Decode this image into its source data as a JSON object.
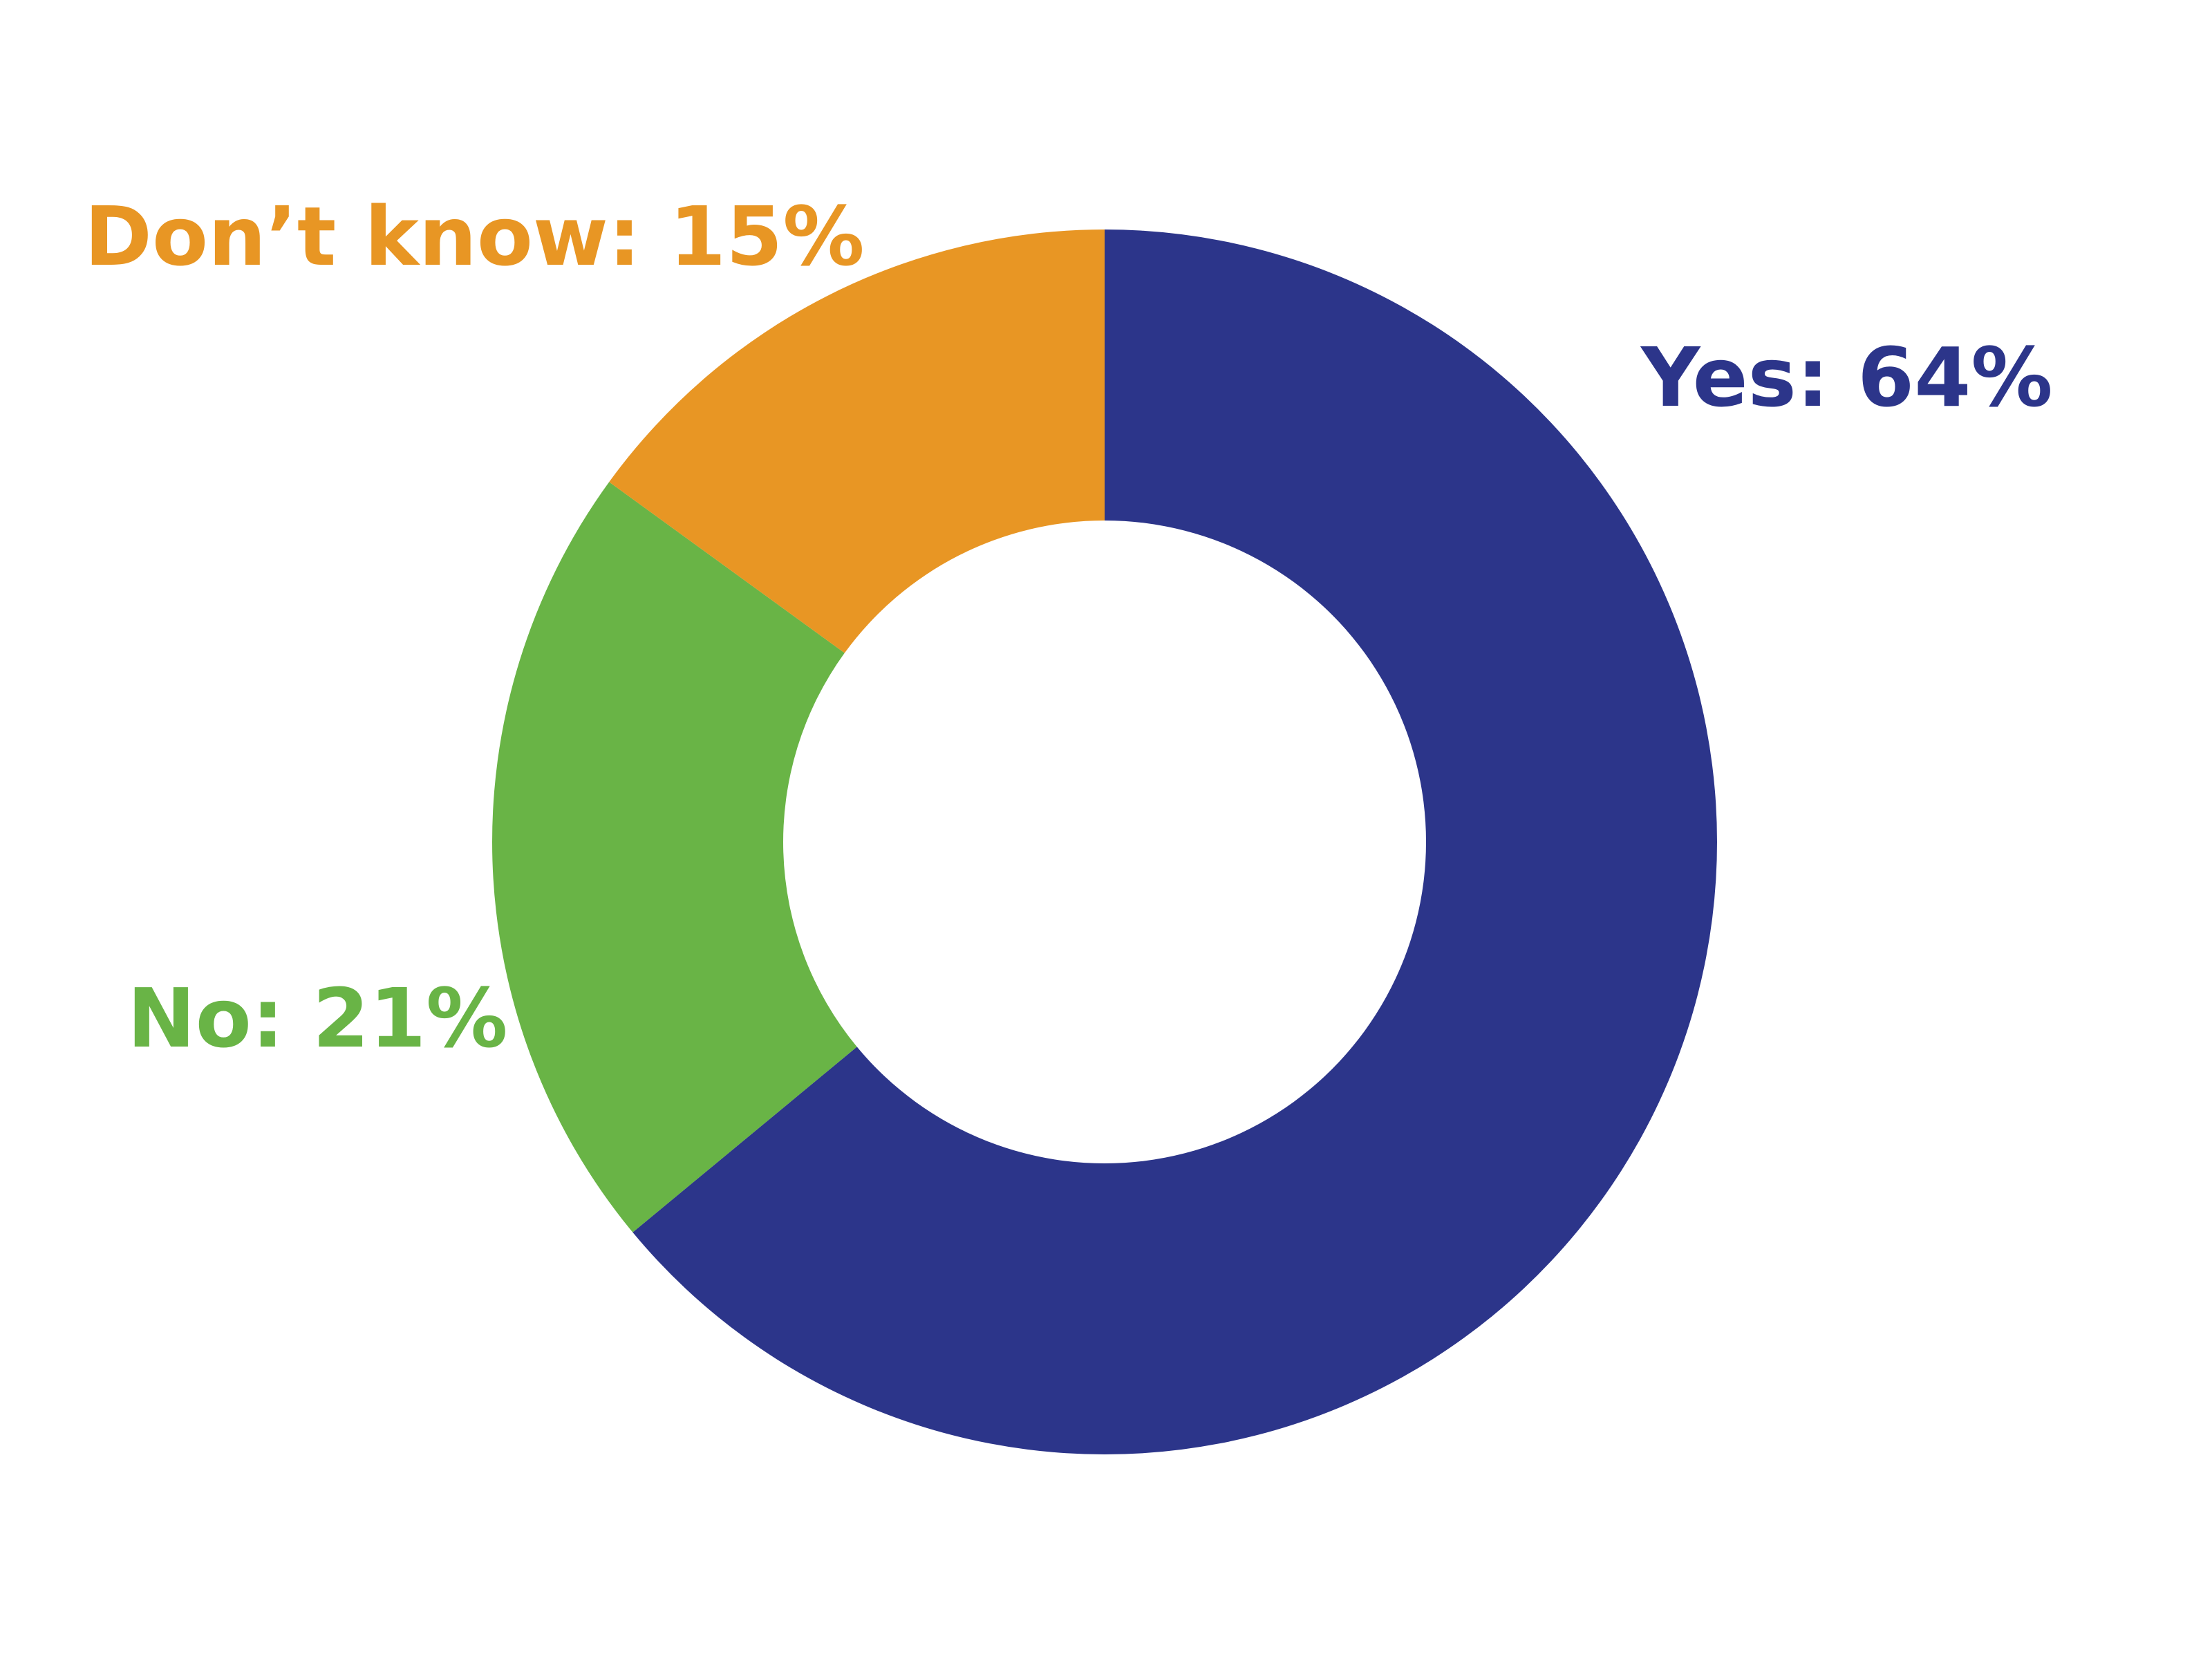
{
  "chart_data": {
    "type": "donut",
    "values": [
      64,
      21,
      15
    ],
    "value_labels": [
      "Yes: 64%",
      "No: 21%",
      "Don’t know: 15%"
    ],
    "colors": [
      "#2c358a",
      "#69b446",
      "#e89624"
    ]
  }
}
